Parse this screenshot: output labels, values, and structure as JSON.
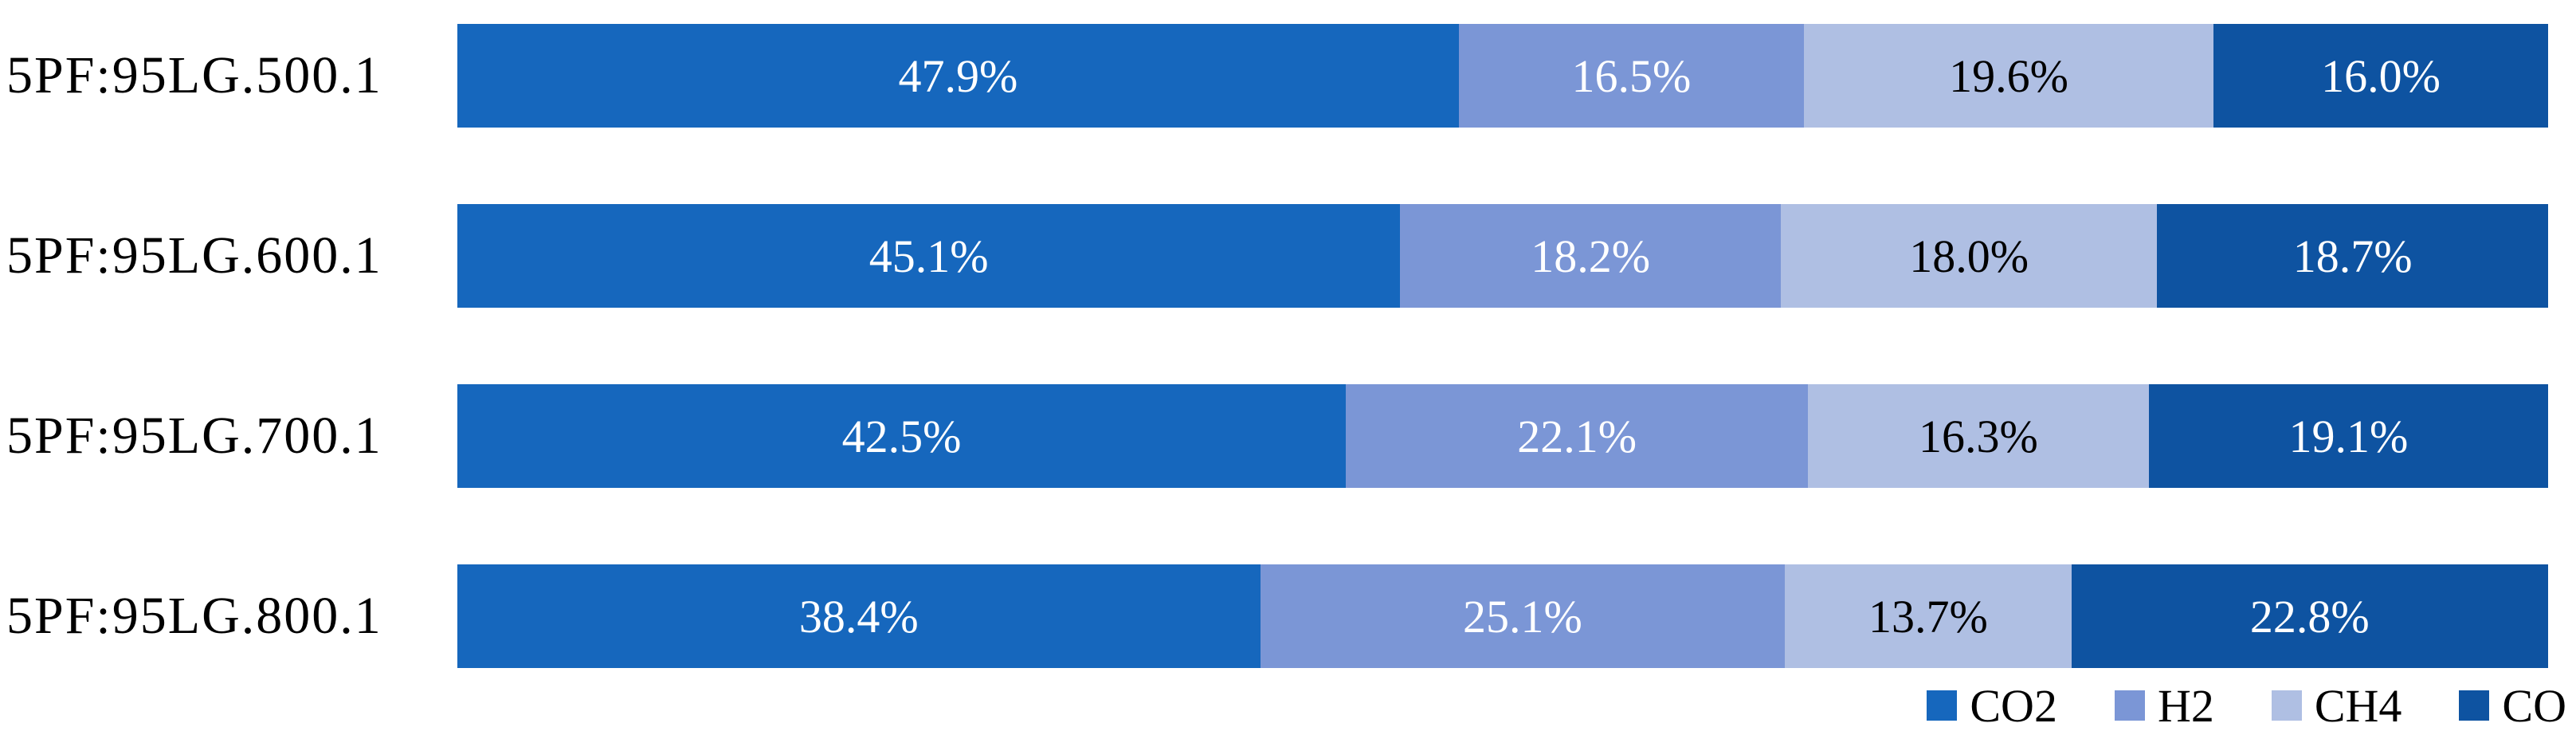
{
  "chart_data": {
    "type": "bar",
    "orientation": "horizontal",
    "stacked": true,
    "unit": "%",
    "categories": [
      "5PF:95LG.500.1",
      "5PF:95LG.600.1",
      "5PF:95LG.700.1",
      "5PF:95LG.800.1"
    ],
    "series": [
      {
        "name": "CO2",
        "color": "#1667BD",
        "label_color": "#ffffff",
        "values": [
          47.9,
          45.1,
          42.5,
          38.4
        ]
      },
      {
        "name": "H2",
        "color": "#7B96D6",
        "label_color": "#ffffff",
        "values": [
          16.5,
          18.2,
          22.1,
          25.1
        ]
      },
      {
        "name": "CH4",
        "color": "#AFBFE3",
        "label_color": "#000000",
        "values": [
          19.6,
          18.0,
          16.3,
          13.7
        ]
      },
      {
        "name": "CO",
        "color": "#0E53A1",
        "label_color": "#ffffff",
        "values": [
          16.0,
          18.7,
          19.1,
          22.8
        ]
      }
    ],
    "value_label_format": "{value}%",
    "value_label_decimals": 1,
    "xlim": [
      0,
      100
    ],
    "grid": false,
    "axes_visible": false,
    "legend": {
      "position": "bottom-right",
      "entries": [
        "CO2",
        "H2",
        "CH4",
        "CO"
      ]
    }
  }
}
